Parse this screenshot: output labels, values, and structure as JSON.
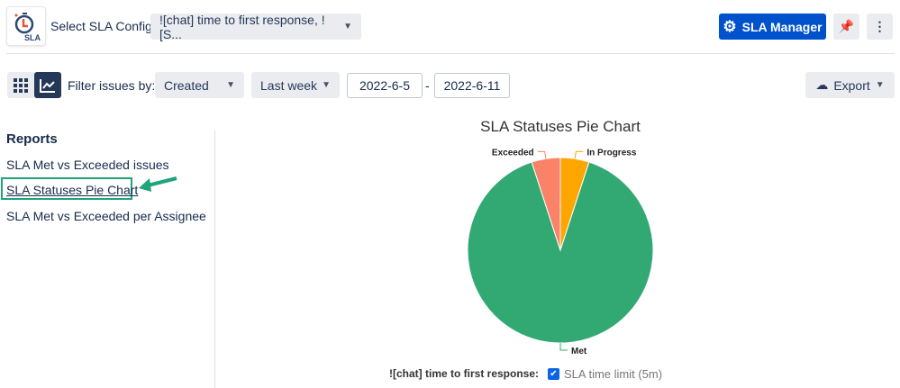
{
  "header": {
    "logo_text": "SLA",
    "select_label": "Select SLA Config",
    "config_value": "![chat] time to first response, ![S...",
    "sla_manager": "SLA Manager"
  },
  "filters": {
    "label": "Filter issues by:",
    "field": "Created",
    "period": "Last week",
    "date_from": "2022-6-5",
    "separator": "-",
    "date_to": "2022-6-11",
    "export": "Export"
  },
  "sidebar": {
    "title": "Reports",
    "items": [
      {
        "label": "SLA Met vs Exceeded issues"
      },
      {
        "label": "SLA Statuses Pie Chart"
      },
      {
        "label": "SLA Met vs Exceeded per Assignee"
      }
    ]
  },
  "chart_data": {
    "type": "pie",
    "title": "SLA Statuses Pie Chart",
    "slices": [
      {
        "label": "In Progress",
        "value": 5,
        "color": "#ffa500"
      },
      {
        "label": "Met",
        "value": 90,
        "color": "#32a973"
      },
      {
        "label": "Exceeded",
        "value": 5,
        "color": "#fa8268"
      }
    ],
    "legend": {
      "config_name": "![chat] time to first response:",
      "item": "SLA time limit (5m)",
      "checked": true
    }
  },
  "colors": {
    "accent": "#0052cc",
    "highlight": "#1fa37a"
  }
}
